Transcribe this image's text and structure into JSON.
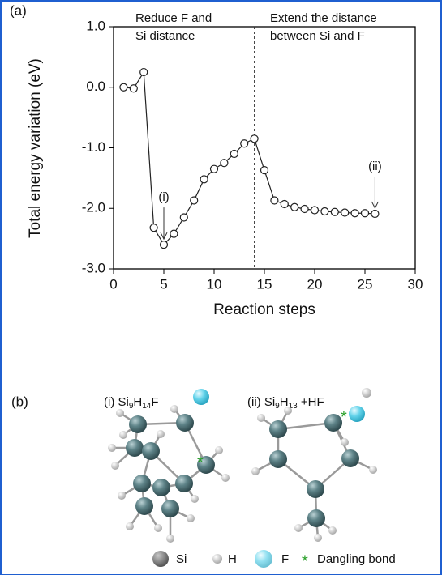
{
  "chart_data": {
    "type": "line",
    "panel_label": "(a)",
    "xlabel": "Reaction steps",
    "ylabel": "Total energy variation (eV)",
    "x": [
      1,
      2,
      3,
      4,
      5,
      6,
      7,
      8,
      9,
      10,
      11,
      12,
      13,
      14,
      15,
      16,
      17,
      18,
      19,
      20,
      21,
      22,
      23,
      24,
      25,
      26
    ],
    "series": [
      {
        "color": "#222222",
        "values": [
          0.0,
          -0.02,
          0.25,
          -2.32,
          -2.6,
          -2.42,
          -2.15,
          -1.87,
          -1.52,
          -1.35,
          -1.25,
          -1.1,
          -0.93,
          -0.85,
          -1.37,
          -1.87,
          -1.93,
          -1.98,
          -2.01,
          -2.03,
          -2.05,
          -2.06,
          -2.07,
          -2.08,
          -2.08,
          -2.09
        ]
      }
    ],
    "xlim": [
      0,
      30
    ],
    "xticks": [
      0,
      5,
      10,
      15,
      20,
      25,
      30
    ],
    "ylim": [
      -3,
      1
    ],
    "yticks": [
      {
        "value": -3,
        "label": "-3.0"
      },
      {
        "value": -2,
        "label": "-2.0"
      },
      {
        "value": -1,
        "label": "-1.0"
      },
      {
        "value": 0,
        "label": "0.0"
      },
      {
        "value": 1,
        "label": "1.0"
      }
    ],
    "vline": 14,
    "annotations": {
      "left_region": [
        "Reduce F and",
        "Si distance"
      ],
      "right_region": [
        "Extend the distance",
        "between Si and F"
      ],
      "point_i": "(i)",
      "point_ii": "(ii)"
    }
  },
  "diagram": {
    "panel_label": "(b)",
    "structure_i": [
      "(i) Si",
      "9",
      "H",
      "14",
      "F"
    ],
    "structure_ii": [
      "(ii) Si",
      "9",
      "H",
      "13",
      " +HF"
    ],
    "dangling_mark": "*",
    "legend": [
      "Si",
      "H",
      "F",
      "*",
      "Dangling bond"
    ]
  }
}
